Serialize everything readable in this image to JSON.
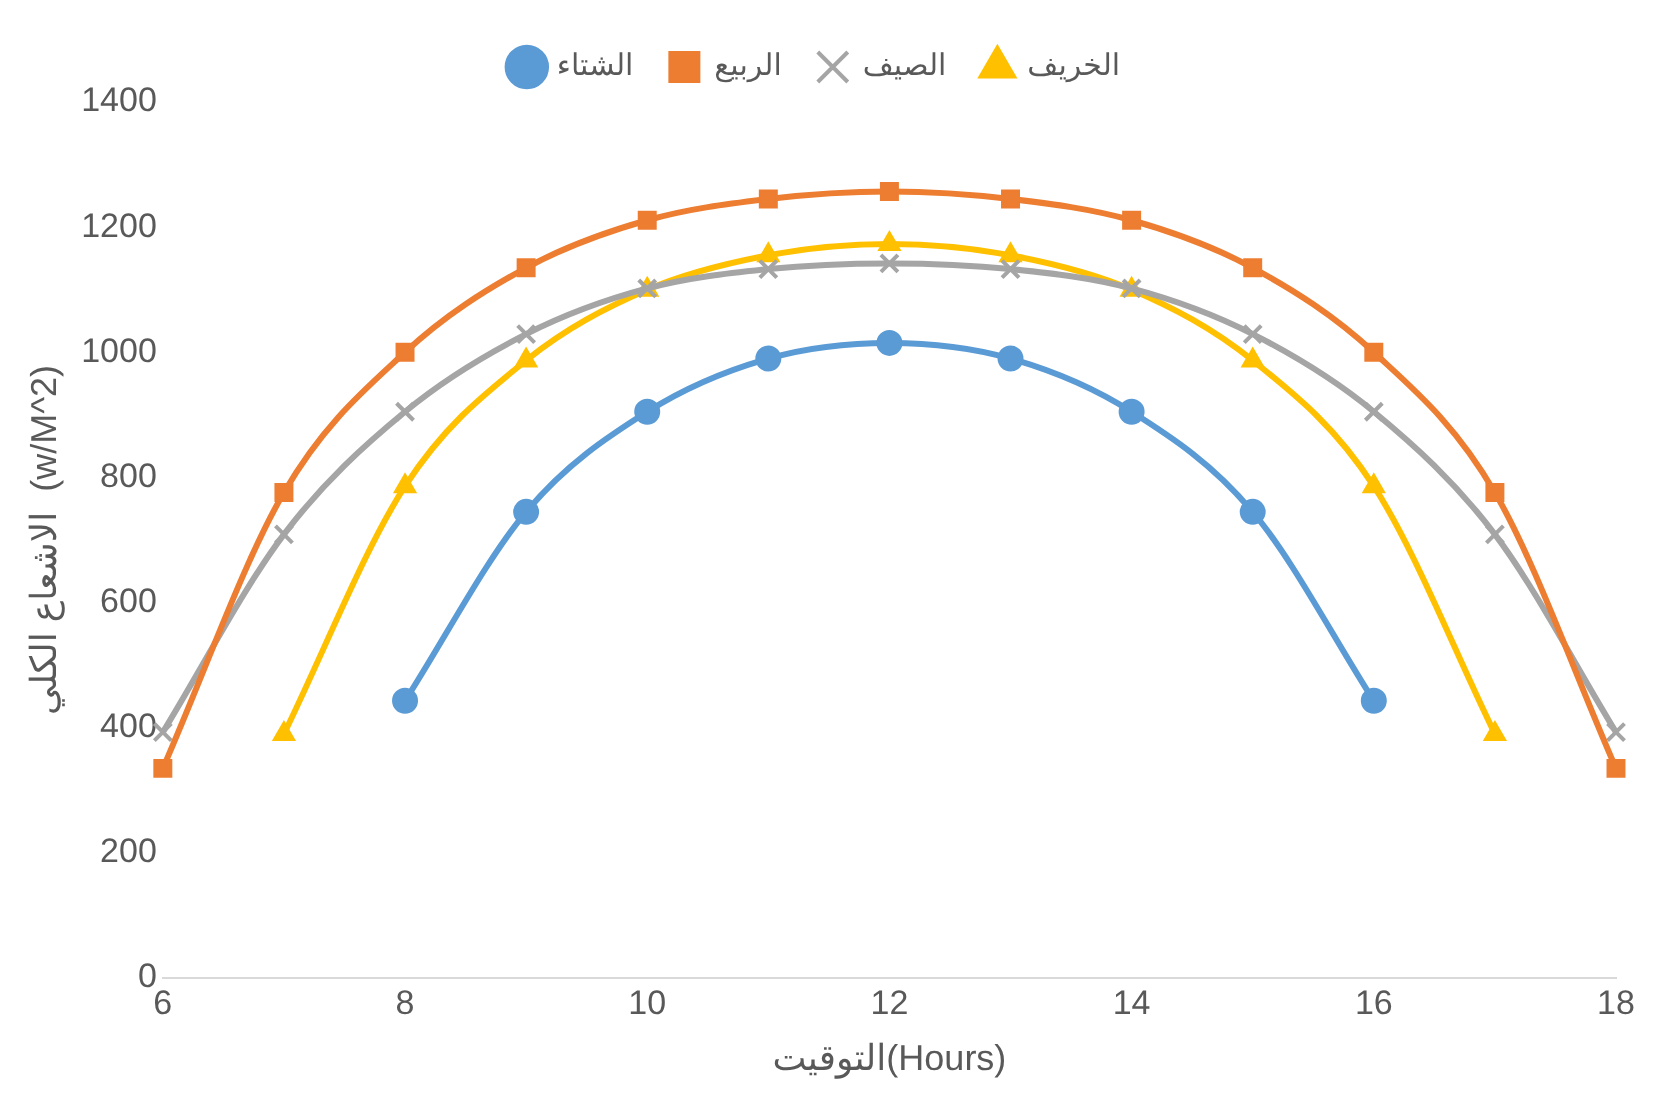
{
  "chart_data": {
    "type": "line",
    "xlabel": "التوقيت(Hours)",
    "ylabel": "الاشعاع الكلي  (w/M^2)",
    "xlim": [
      6,
      18
    ],
    "xticks": [
      6,
      8,
      10,
      12,
      14,
      16,
      18
    ],
    "ylim": [
      0,
      1400
    ],
    "yticks": [
      0,
      200,
      400,
      600,
      800,
      1000,
      1200,
      1400
    ],
    "grid": false,
    "legend": "top",
    "series": [
      {
        "name": "الشتاء",
        "color": "#5b9bd5",
        "marker": "circle",
        "x": [
          8,
          9,
          10,
          11,
          12,
          13,
          14,
          15,
          16
        ],
        "values": [
          443,
          745,
          905,
          990,
          1015,
          990,
          905,
          745,
          443
        ]
      },
      {
        "name": "الربيع",
        "color": "#ed7d31",
        "marker": "square",
        "x": [
          6,
          7,
          8,
          9,
          10,
          11,
          12,
          13,
          14,
          15,
          16,
          17,
          18
        ],
        "values": [
          335,
          776,
          1000,
          1135,
          1211,
          1245,
          1257,
          1245,
          1211,
          1135,
          1000,
          776,
          335
        ]
      },
      {
        "name": "الصيف",
        "color": "#a5a5a5",
        "marker": "cross",
        "x": [
          6,
          7,
          8,
          9,
          10,
          11,
          12,
          13,
          14,
          15,
          16,
          17,
          18
        ],
        "values": [
          393,
          709,
          905,
          1029,
          1102,
          1133,
          1142,
          1133,
          1102,
          1029,
          905,
          709,
          393
        ]
      },
      {
        "name": "الخريف",
        "color": "#ffc000",
        "marker": "triangle",
        "x": [
          7,
          8,
          9,
          10,
          11,
          12,
          13,
          14,
          15,
          16,
          17
        ],
        "values": [
          390,
          786,
          987,
          1100,
          1155,
          1173,
          1155,
          1100,
          987,
          786,
          390
        ]
      }
    ]
  }
}
